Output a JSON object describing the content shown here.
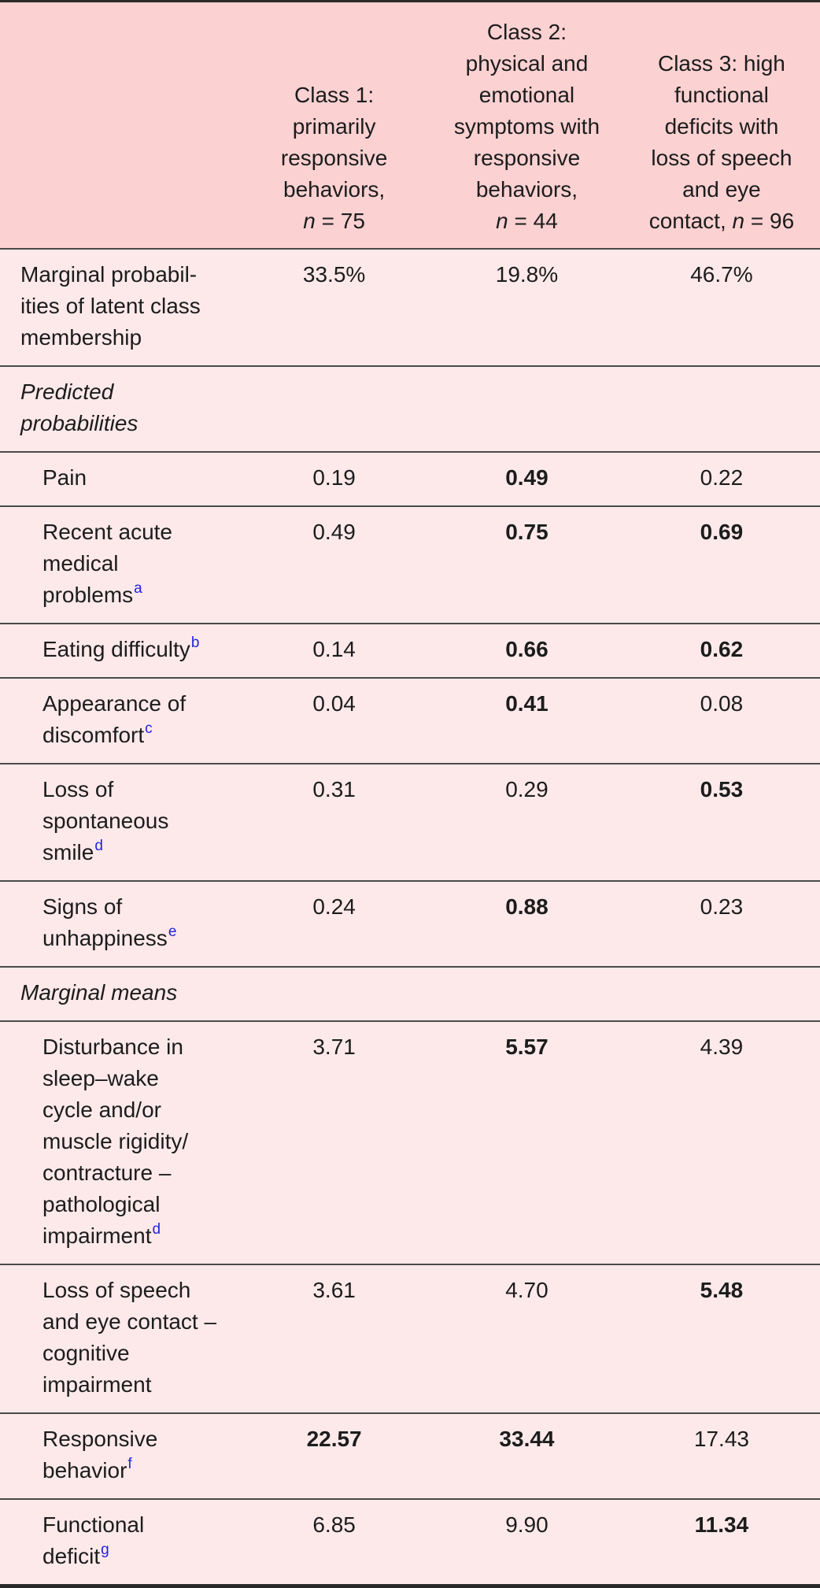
{
  "colors": {
    "header_bg": "#fbd1d2",
    "body_bg": "#fde9ea",
    "rule": "#4a4a4a",
    "outer": "#2a2a2a",
    "text": "#1c1c1c",
    "footnote_blue": "#2323dd"
  },
  "table": {
    "columns": [
      {
        "title": "Class 1:\nprimarily\nresponsive\nbehaviors,",
        "n_prefix": "",
        "n_var": "n",
        "n_eq": " = 75"
      },
      {
        "title": "Class 2:\nphysical and\nemotional\nsymptoms with\nresponsive\nbehaviors,",
        "n_prefix": "",
        "n_var": "n",
        "n_eq": " = 44"
      },
      {
        "title": "Class 3: high\nfunctional\ndeficits with\nloss of speech\nand eye",
        "n_prefix": "contact, ",
        "n_var": "n",
        "n_eq": " = 96"
      }
    ],
    "rows": [
      {
        "type": "data",
        "indent": false,
        "label": "Marginal probabil-\nities of latent class\nmembership",
        "sup": "",
        "values": [
          {
            "v": "33.5%",
            "bold": false
          },
          {
            "v": "19.8%",
            "bold": false
          },
          {
            "v": "46.7%",
            "bold": false
          }
        ]
      },
      {
        "type": "section",
        "label": "Predicted\nprobabilities",
        "sup": "",
        "values": []
      },
      {
        "type": "data",
        "indent": true,
        "label": "Pain",
        "sup": "",
        "values": [
          {
            "v": "0.19",
            "bold": false
          },
          {
            "v": "0.49",
            "bold": true
          },
          {
            "v": "0.22",
            "bold": false
          }
        ]
      },
      {
        "type": "data",
        "indent": true,
        "label": "Recent acute\nmedical\nproblems",
        "sup": "a",
        "values": [
          {
            "v": "0.49",
            "bold": false
          },
          {
            "v": "0.75",
            "bold": true
          },
          {
            "v": "0.69",
            "bold": true
          }
        ]
      },
      {
        "type": "data",
        "indent": true,
        "label": "Eating difficulty",
        "sup": "b",
        "values": [
          {
            "v": "0.14",
            "bold": false
          },
          {
            "v": "0.66",
            "bold": true
          },
          {
            "v": "0.62",
            "bold": true
          }
        ]
      },
      {
        "type": "data",
        "indent": true,
        "label": "Appearance of\ndiscomfort",
        "sup": "c",
        "values": [
          {
            "v": "0.04",
            "bold": false
          },
          {
            "v": "0.41",
            "bold": true
          },
          {
            "v": "0.08",
            "bold": false
          }
        ]
      },
      {
        "type": "data",
        "indent": true,
        "label": "Loss of\nspontaneous\nsmile",
        "sup": "d",
        "values": [
          {
            "v": "0.31",
            "bold": false
          },
          {
            "v": "0.29",
            "bold": false
          },
          {
            "v": "0.53",
            "bold": true
          }
        ]
      },
      {
        "type": "data",
        "indent": true,
        "label": "Signs of\nunhappiness",
        "sup": "e",
        "values": [
          {
            "v": "0.24",
            "bold": false
          },
          {
            "v": "0.88",
            "bold": true
          },
          {
            "v": "0.23",
            "bold": false
          }
        ]
      },
      {
        "type": "section",
        "label": "Marginal means",
        "sup": "",
        "values": []
      },
      {
        "type": "data",
        "indent": true,
        "label": "Disturbance in\nsleep–wake\ncycle and/or\nmuscle rigidity/\ncontracture –\npathological\nimpairment",
        "sup": "d",
        "values": [
          {
            "v": "3.71",
            "bold": false
          },
          {
            "v": "5.57",
            "bold": true
          },
          {
            "v": "4.39",
            "bold": false
          }
        ]
      },
      {
        "type": "data",
        "indent": true,
        "label": "Loss of speech\nand eye contact –\ncognitive\nimpairment",
        "sup": "",
        "values": [
          {
            "v": "3.61",
            "bold": false
          },
          {
            "v": "4.70",
            "bold": false
          },
          {
            "v": "5.48",
            "bold": true
          }
        ]
      },
      {
        "type": "data",
        "indent": true,
        "label": "Responsive\nbehavior",
        "sup": "f",
        "values": [
          {
            "v": "22.57",
            "bold": true
          },
          {
            "v": "33.44",
            "bold": true
          },
          {
            "v": "17.43",
            "bold": false
          }
        ]
      },
      {
        "type": "data",
        "indent": true,
        "label": "Functional\ndeficit",
        "sup": "g",
        "values": [
          {
            "v": "6.85",
            "bold": false
          },
          {
            "v": "9.90",
            "bold": false
          },
          {
            "v": "11.34",
            "bold": true
          }
        ]
      }
    ]
  }
}
